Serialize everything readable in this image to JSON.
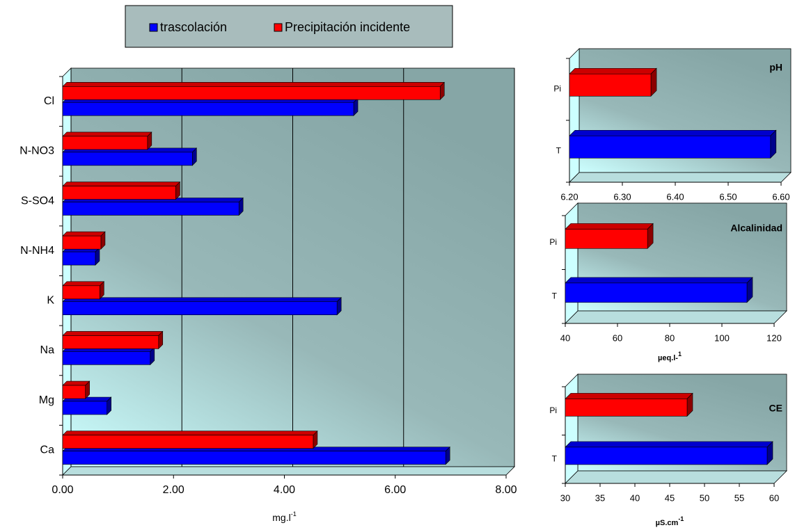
{
  "chart_data": [
    {
      "type": "bar",
      "orientation": "horizontal",
      "legend": "top",
      "grid": true,
      "categories": [
        "Cl",
        "N-NO3",
        "S-SO4",
        "N-NH4",
        "K",
        "Na",
        "Mg",
        "Ca"
      ],
      "series": [
        {
          "name": "trascolación",
          "color": "#0000ff",
          "values": [
            5.25,
            2.34,
            3.18,
            0.59,
            4.95,
            1.58,
            0.8,
            6.91
          ]
        },
        {
          "name": "Precipitación incidente",
          "color": "#ff0000",
          "values": [
            6.81,
            1.53,
            2.04,
            0.69,
            0.67,
            1.73,
            0.41,
            4.52
          ]
        }
      ],
      "xlim": [
        0,
        8
      ],
      "xticks": [
        {
          "value": 0,
          "label": "0.00"
        },
        {
          "value": 2,
          "label": "2.00"
        },
        {
          "value": 4,
          "label": "4.00"
        },
        {
          "value": 6,
          "label": "6.00"
        },
        {
          "value": 8,
          "label": "8.00"
        }
      ],
      "x_label": {
        "text": "mg.l",
        "superscript": "-1"
      }
    },
    {
      "type": "bar",
      "orientation": "horizontal",
      "title": "pH",
      "categories": [
        "Pi",
        "T"
      ],
      "values": [
        6.354,
        6.58
      ],
      "colors": [
        "#ff0000",
        "#0000ff"
      ],
      "xlim": [
        6.2,
        6.6
      ],
      "xticks": [
        {
          "value": 6.2,
          "label": "6.20"
        },
        {
          "value": 6.3,
          "label": "6.30"
        },
        {
          "value": 6.4,
          "label": "6.40"
        },
        {
          "value": 6.5,
          "label": "6.50"
        },
        {
          "value": 6.6,
          "label": "6.60"
        }
      ]
    },
    {
      "type": "bar",
      "orientation": "horizontal",
      "title": "Alcalinidad",
      "categories": [
        "Pi",
        "T"
      ],
      "values": [
        71.5,
        109.6
      ],
      "colors": [
        "#ff0000",
        "#0000ff"
      ],
      "xlim": [
        40,
        120
      ],
      "xticks": [
        40,
        60,
        80,
        100,
        120
      ],
      "x_label": {
        "text": "µeq.l-",
        "superscript": "1"
      }
    },
    {
      "type": "bar",
      "orientation": "horizontal",
      "title": "CE",
      "categories": [
        "Pi",
        "T"
      ],
      "values": [
        47.5,
        59
      ],
      "colors": [
        "#ff0000",
        "#0000ff"
      ],
      "xlim": [
        30,
        60
      ],
      "xticks": [
        30,
        35,
        40,
        45,
        50,
        55,
        60
      ],
      "x_label": {
        "text": "µS.cm",
        "superscript": "-1"
      }
    }
  ]
}
